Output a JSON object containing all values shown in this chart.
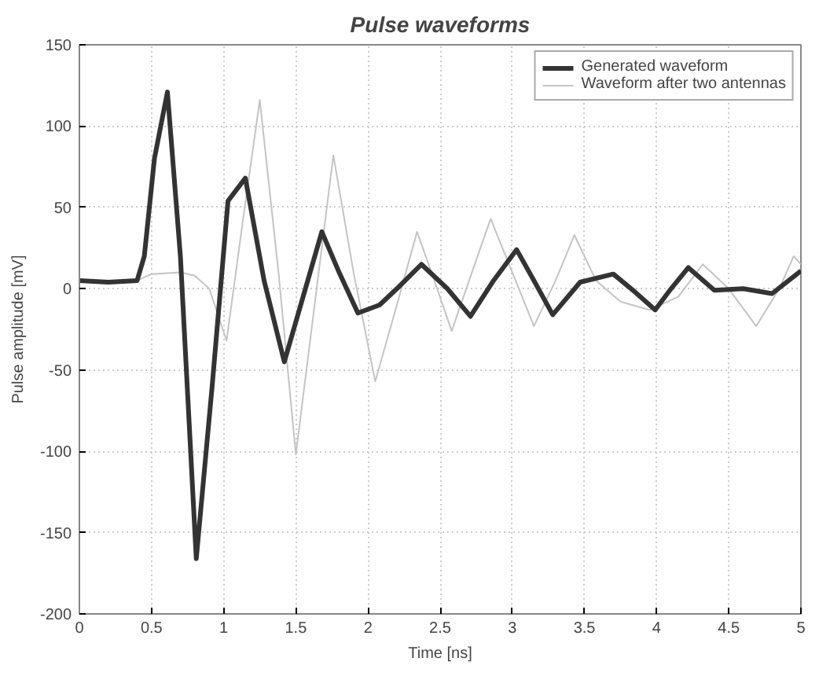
{
  "chart_data": {
    "type": "line",
    "title": "Pulse waveforms",
    "xlabel": "Time [ns]",
    "ylabel": "Pulse amplitude [mV]",
    "xlim": [
      0,
      5
    ],
    "ylim": [
      -200,
      150
    ],
    "xticks": [
      0,
      0.5,
      1,
      1.5,
      2,
      2.5,
      3,
      3.5,
      4,
      4.5,
      5
    ],
    "yticks": [
      -200,
      -150,
      -100,
      -50,
      0,
      50,
      100,
      150
    ],
    "grid": true,
    "legend": "top right",
    "line_style": "solid",
    "series": [
      {
        "name": "Generated waveform",
        "color": "#333333",
        "x": [
          0,
          0.2,
          0.4,
          0.45,
          0.52,
          0.61,
          0.7,
          0.81,
          0.92,
          1.03,
          1.15,
          1.28,
          1.42,
          1.55,
          1.68,
          1.8,
          1.93,
          2.08,
          2.2,
          2.37,
          2.55,
          2.71,
          2.87,
          3.03,
          3.15,
          3.28,
          3.47,
          3.7,
          3.85,
          3.99,
          4.1,
          4.22,
          4.4,
          4.6,
          4.8,
          5.0
        ],
        "values": [
          5,
          4,
          5,
          20,
          80,
          121,
          20,
          -166,
          -60,
          54,
          68,
          5,
          -45,
          -5,
          35,
          10,
          -15,
          -10,
          0,
          15,
          0,
          -17,
          5,
          24,
          5,
          -16,
          4,
          9,
          -2,
          -13,
          0,
          13,
          -1,
          0,
          -3,
          11
        ]
      },
      {
        "name": "Waveform after two antennas",
        "color": "#c4c4c4",
        "x": [
          0,
          0.4,
          0.5,
          0.7,
          0.8,
          0.9,
          1.02,
          1.13,
          1.25,
          1.38,
          1.5,
          1.63,
          1.76,
          1.9,
          2.05,
          2.2,
          2.34,
          2.46,
          2.58,
          2.72,
          2.85,
          3.0,
          3.15,
          3.3,
          3.43,
          3.58,
          3.75,
          3.95,
          4.15,
          4.32,
          4.5,
          4.69,
          4.85,
          4.95,
          5.0
        ],
        "values": [
          5,
          5,
          9,
          10,
          8,
          0,
          -32,
          40,
          116,
          10,
          -102,
          -10,
          82,
          10,
          -57,
          -10,
          35,
          5,
          -26,
          10,
          43,
          10,
          -23,
          5,
          33,
          5,
          -8,
          -13,
          -5,
          15,
          0,
          -23,
          0,
          20,
          15
        ]
      }
    ]
  }
}
